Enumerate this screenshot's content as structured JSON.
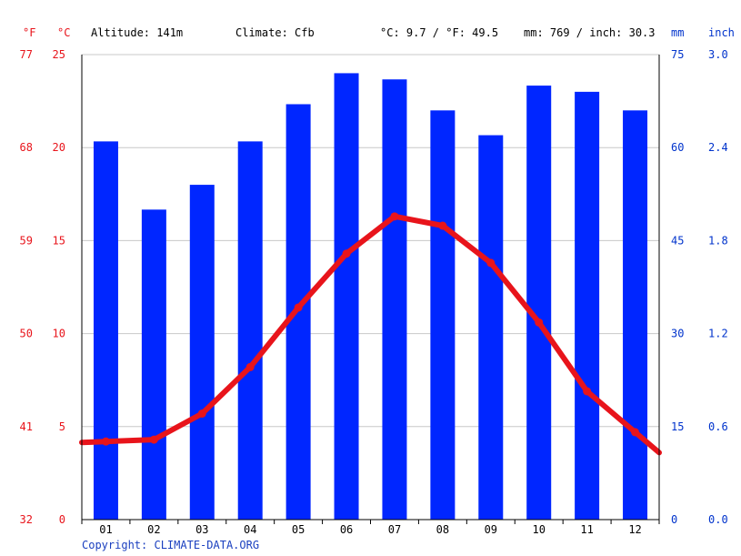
{
  "header": {
    "unit_f": "°F",
    "unit_c": "°C",
    "altitude": "Altitude: 141m",
    "climate": "Climate: Cfb",
    "avg_temp": "°C: 9.7 / °F: 49.5",
    "precip_total": "mm: 769 / inch: 30.3",
    "unit_mm": "mm",
    "unit_inch": "inch"
  },
  "footer": {
    "copyright": "Copyright: CLIMATE-DATA.ORG"
  },
  "colors": {
    "temp": "#e8141b",
    "precip": "#0026ff",
    "grid": "#c8c8c8",
    "blue_text": "#0033cc"
  },
  "chart_data": {
    "type": "bar",
    "categories": [
      "01",
      "02",
      "03",
      "04",
      "05",
      "06",
      "07",
      "08",
      "09",
      "10",
      "11",
      "12"
    ],
    "series": [
      {
        "type": "bar",
        "axis": "right",
        "values": [
          61,
          50,
          54,
          61,
          67,
          72,
          71,
          66,
          62,
          70,
          69,
          66
        ]
      },
      {
        "type": "line",
        "axis": "left",
        "values": [
          4.2,
          4.3,
          5.7,
          8.2,
          11.4,
          14.3,
          16.3,
          15.8,
          13.8,
          10.6,
          6.9,
          4.7
        ]
      }
    ],
    "y_left": {
      "label": "°C",
      "min": 0,
      "max": 25,
      "ticks": [
        0,
        5,
        10,
        15,
        20,
        25
      ],
      "f_ticks": [
        32,
        41,
        50,
        59,
        68,
        77
      ]
    },
    "y_right": {
      "label": "mm",
      "min": 0,
      "max": 75,
      "ticks": [
        0,
        15,
        30,
        45,
        60,
        75
      ],
      "inch_ticks": [
        "0.0",
        "0.6",
        "1.2",
        "1.8",
        "2.4",
        "3.0"
      ]
    },
    "grid": true
  }
}
